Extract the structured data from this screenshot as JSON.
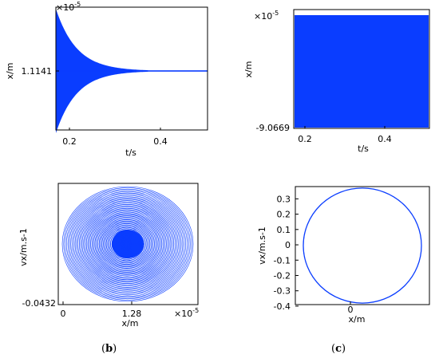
{
  "colors": {
    "series": "#0a3dff",
    "axis": "#000000"
  },
  "captions": {
    "b": {
      "open": "(",
      "letter": "b",
      "close": ")"
    },
    "c": {
      "open": "(",
      "letter": "c",
      "close": ")"
    }
  },
  "chart_data": [
    {
      "id": "a",
      "type": "line",
      "xlabel": "t/s",
      "ylabel": "x/m",
      "exponent": "×10",
      "exponent_power": "-5",
      "x_ticks": [
        "0.2",
        "0.4"
      ],
      "y_ticks": [
        "1.1141"
      ],
      "xlim": [
        0.17,
        0.52
      ],
      "center_value": 1.1141,
      "envelope": {
        "start_amplitude": 1.0,
        "decay": "exponential",
        "settle_t": 0.42
      }
    },
    {
      "id": "b",
      "type": "line",
      "xlabel": "t/s",
      "ylabel": "x/m",
      "exponent": "×10",
      "exponent_power": "-5",
      "x_ticks": [
        "0.2",
        "0.4"
      ],
      "y_ticks": [
        "-9.0669"
      ],
      "xlim": [
        0.17,
        0.52
      ],
      "envelope": {
        "start_amplitude": 1.0,
        "decay": "none"
      }
    },
    {
      "id": "c",
      "type": "line",
      "xlabel": "x/m",
      "ylabel": "vx/m.s-1",
      "exponent": "×10",
      "exponent_power": "-5",
      "x_ticks": [
        "0",
        "1.28"
      ],
      "y_ticks": [
        "-0.0432"
      ],
      "loops": 45
    },
    {
      "id": "d",
      "type": "line",
      "xlabel": "x/m",
      "ylabel": "vx/m.s-1",
      "x_ticks": [
        "0"
      ],
      "y_ticks": [
        "-0.4",
        "-0.3",
        "-0.2",
        "-0.1",
        "0",
        "0.1",
        "0.2",
        "0.3"
      ],
      "ylim": [
        -0.39,
        0.38
      ],
      "orbit": {
        "vmax": 0.37,
        "vmin": -0.38
      }
    }
  ]
}
